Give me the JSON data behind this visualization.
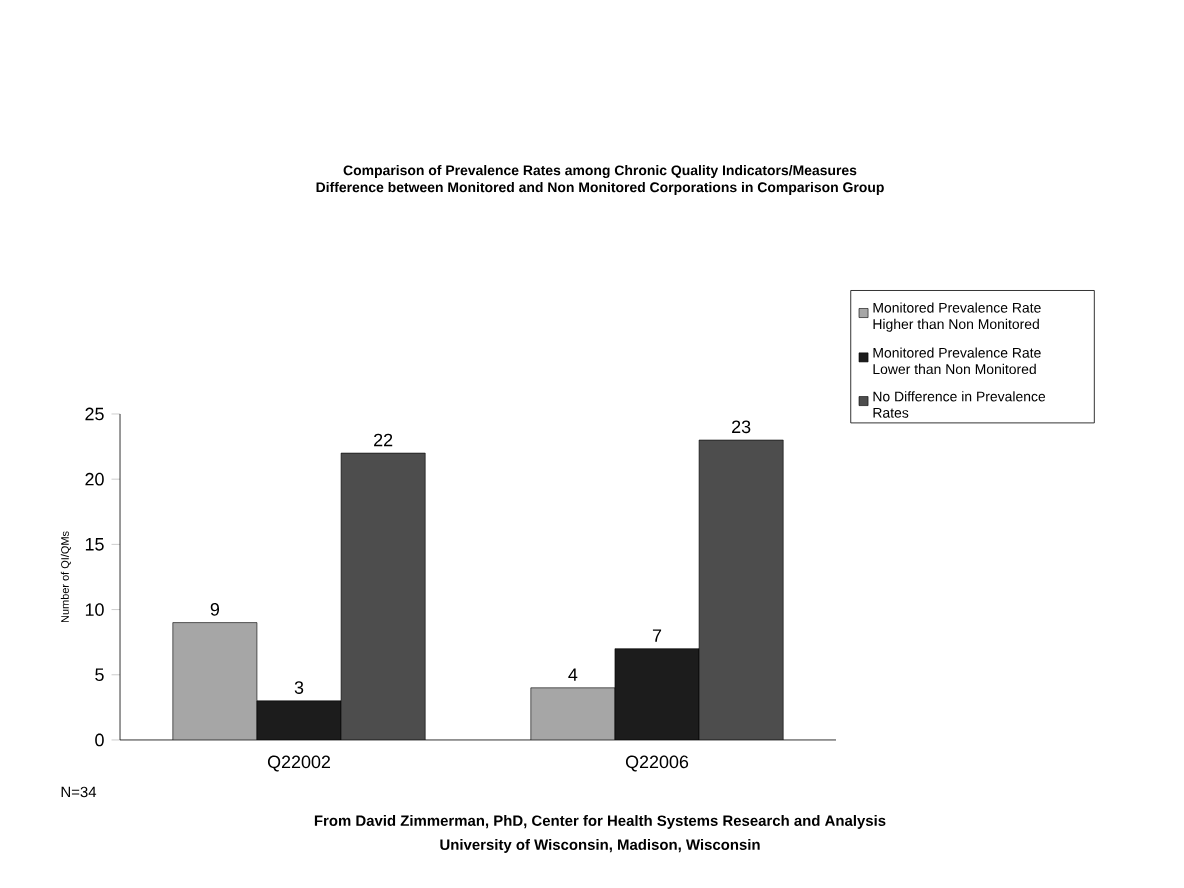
{
  "chart_data": {
    "type": "bar",
    "title": "Comparison of Prevalence Rates among Chronic Quality Indicators/Measures",
    "subtitle": "Difference between Monitored and Non Monitored Corporations in Comparison Group",
    "ylabel": "Number of QI/QMs",
    "categories": [
      "Q22002",
      "Q22006"
    ],
    "series": [
      {
        "name": "Monitored Prevalence Rate Higher than Non Monitored",
        "color": "#a6a6a6",
        "values": [
          9,
          4
        ]
      },
      {
        "name": "Monitored Prevalence Rate Lower than Non Monitored",
        "color": "#1c1c1c",
        "values": [
          3,
          7
        ]
      },
      {
        "name": "No Difference in Prevalence Rates",
        "color": "#4d4d4d",
        "values": [
          22,
          23
        ]
      }
    ],
    "ylim": [
      0,
      25
    ],
    "yticks": [
      0,
      5,
      10,
      15,
      20,
      25
    ],
    "data_labels": true,
    "legend": "right",
    "annotations": [
      "N=34",
      "From David Zimmerman, PhD, Center for Health Systems Research and Analysis",
      "University of Wisconsin, Madison, Wisconsin"
    ]
  }
}
